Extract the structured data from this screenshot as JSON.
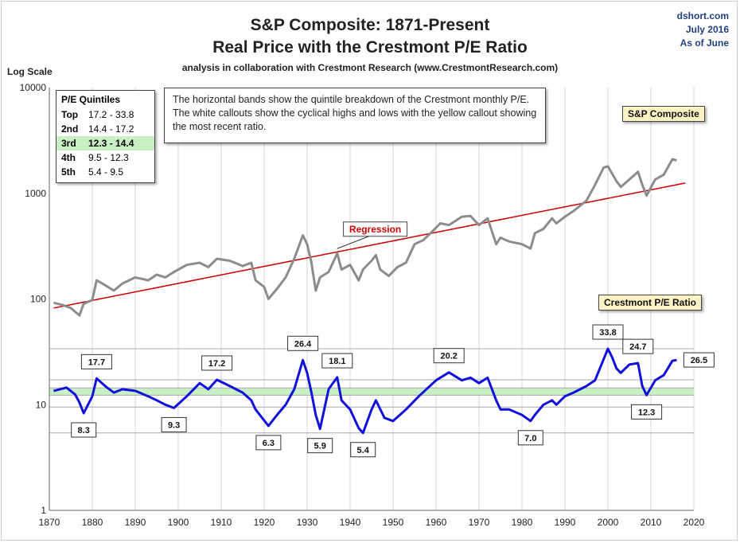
{
  "title_line1": "S&P Composite: 1871-Present",
  "title_line2": "Real Price with the Crestmont P/E Ratio",
  "subtitle": "analysis in collaboration with Crestmont Research (www.CrestmontResearch.com)",
  "source": {
    "line1": "dshort.com",
    "line2": "July 2016",
    "line3": "As of June"
  },
  "axis_label_y": "Log Scale",
  "quintiles": {
    "heading": "P/E Quintiles",
    "rows": [
      {
        "label": "Top",
        "range": "17.2 - 33.8"
      },
      {
        "label": "2nd",
        "range": "14.4 - 17.2"
      },
      {
        "label": "3rd",
        "range": "12.3 - 14.4"
      },
      {
        "label": "4th",
        "range": "9.5 - 12.3"
      },
      {
        "label": "5th",
        "range": "5.4 - 9.5"
      }
    ]
  },
  "note": "The horizontal bands show the quintile breakdown of the Crestmont monthly P/E.  The white callouts show the cyclical highs and lows with the yellow callout showing the most recent ratio.",
  "series_labels": {
    "sp": "S&P Composite",
    "pe": "Crestmont P/E Ratio",
    "regression": "Regression"
  },
  "colors": {
    "sp": "#8c8c8c",
    "pe": "#1111dd",
    "regression": "#cc0000",
    "band": "#c8f0c4",
    "callout_recent": "#fdf3c4"
  },
  "chart_data": {
    "type": "line",
    "yscale": "log",
    "ylim": [
      1,
      10000
    ],
    "xlim": [
      1870,
      2020
    ],
    "y_ticks": [
      "1",
      "10",
      "100",
      "1000",
      "10000"
    ],
    "x_ticks": [
      "1870",
      "1880",
      "1890",
      "1900",
      "1910",
      "1920",
      "1930",
      "1940",
      "1950",
      "1960",
      "1970",
      "1980",
      "1990",
      "2000",
      "2010",
      "2020"
    ],
    "grid": true,
    "hlines": [
      5.4,
      9.5,
      12.3,
      14.4,
      17.2,
      33.8
    ],
    "band": [
      12.3,
      14.4
    ],
    "series": [
      {
        "name": "S&P Composite",
        "x": [
          1871,
          1873,
          1875,
          1877,
          1878,
          1880,
          1881,
          1883,
          1885,
          1887,
          1890,
          1893,
          1895,
          1897,
          1899,
          1902,
          1905,
          1907,
          1909,
          1912,
          1915,
          1917,
          1918,
          1920,
          1921,
          1923,
          1925,
          1927,
          1929,
          1930,
          1931,
          1932,
          1933,
          1935,
          1937,
          1938,
          1940,
          1942,
          1943,
          1945,
          1946,
          1947,
          1949,
          1951,
          1953,
          1955,
          1957,
          1959,
          1961,
          1963,
          1966,
          1968,
          1970,
          1972,
          1974,
          1975,
          1977,
          1980,
          1982,
          1983,
          1985,
          1987,
          1988,
          1990,
          1992,
          1995,
          1997,
          1999,
          2000,
          2002,
          2003,
          2005,
          2007,
          2008,
          2009,
          2011,
          2013,
          2015,
          2016
        ],
        "y": [
          92,
          88,
          82,
          70,
          90,
          98,
          150,
          135,
          120,
          140,
          160,
          150,
          170,
          160,
          180,
          210,
          220,
          200,
          240,
          230,
          205,
          220,
          150,
          130,
          100,
          125,
          160,
          240,
          400,
          330,
          220,
          120,
          160,
          180,
          270,
          190,
          210,
          150,
          190,
          230,
          260,
          190,
          165,
          200,
          220,
          330,
          360,
          430,
          520,
          500,
          600,
          610,
          500,
          580,
          330,
          380,
          350,
          330,
          300,
          420,
          460,
          580,
          520,
          600,
          680,
          850,
          1200,
          1750,
          1800,
          1300,
          1150,
          1350,
          1600,
          1200,
          950,
          1350,
          1500,
          2100,
          2050
        ]
      },
      {
        "name": "Crestmont P/E Ratio",
        "x": [
          1871,
          1874,
          1876,
          1877,
          1878,
          1880,
          1881,
          1883,
          1885,
          1887,
          1890,
          1893,
          1895,
          1897,
          1899,
          1902,
          1905,
          1907,
          1909,
          1912,
          1915,
          1917,
          1918,
          1921,
          1923,
          1925,
          1927,
          1929,
          1930,
          1931,
          1932,
          1933,
          1935,
          1936,
          1937,
          1938,
          1940,
          1942,
          1943,
          1945,
          1946,
          1948,
          1950,
          1953,
          1956,
          1960,
          1963,
          1966,
          1968,
          1970,
          1972,
          1974,
          1975,
          1977,
          1980,
          1982,
          1983,
          1985,
          1987,
          1988,
          1990,
          1992,
          1995,
          1997,
          2000,
          2001,
          2002,
          2003,
          2005,
          2007,
          2008,
          2009,
          2011,
          2013,
          2015,
          2016
        ],
        "y": [
          13.5,
          14.5,
          12.5,
          10.5,
          8.3,
          12,
          17.7,
          15,
          13,
          14,
          13.5,
          12,
          11,
          10,
          9.3,
          12,
          16,
          14,
          17.2,
          15,
          13,
          11,
          9,
          6.3,
          8,
          10,
          14,
          26.4,
          20,
          13,
          8,
          5.9,
          14,
          16,
          18.1,
          11,
          9,
          6,
          5.4,
          9,
          11,
          7.5,
          7,
          9,
          12,
          17,
          20.2,
          17,
          18,
          16,
          18,
          11,
          9,
          9,
          8,
          7.0,
          8,
          10,
          11,
          10,
          12,
          13,
          15,
          17,
          33.8,
          28,
          22,
          20,
          24,
          24.7,
          15,
          12.3,
          17,
          19,
          26,
          26.5
        ]
      }
    ],
    "regression": {
      "x": [
        1871,
        2018
      ],
      "y": [
        82,
        1250
      ]
    },
    "callouts": [
      {
        "text": "8.3",
        "x": 1878,
        "y": 8.3,
        "pos": "below"
      },
      {
        "text": "17.7",
        "x": 1881,
        "y": 17.7,
        "pos": "above"
      },
      {
        "text": "9.3",
        "x": 1899,
        "y": 9.3,
        "pos": "below"
      },
      {
        "text": "17.2",
        "x": 1909,
        "y": 17.2,
        "pos": "above"
      },
      {
        "text": "6.3",
        "x": 1921,
        "y": 6.3,
        "pos": "below"
      },
      {
        "text": "26.4",
        "x": 1929,
        "y": 26.4,
        "pos": "above"
      },
      {
        "text": "5.9",
        "x": 1933,
        "y": 5.9,
        "pos": "below"
      },
      {
        "text": "18.1",
        "x": 1937,
        "y": 18.1,
        "pos": "above"
      },
      {
        "text": "5.4",
        "x": 1943,
        "y": 5.4,
        "pos": "below"
      },
      {
        "text": "20.2",
        "x": 1963,
        "y": 20.2,
        "pos": "above"
      },
      {
        "text": "7.0",
        "x": 1982,
        "y": 7.0,
        "pos": "below"
      },
      {
        "text": "33.8",
        "x": 2000,
        "y": 33.8,
        "pos": "above"
      },
      {
        "text": "24.7",
        "x": 2007,
        "y": 24.7,
        "pos": "above"
      },
      {
        "text": "12.3",
        "x": 2009,
        "y": 12.3,
        "pos": "below"
      },
      {
        "text": "26.5",
        "x": 2016,
        "y": 26.5,
        "pos": "right",
        "recent": true
      }
    ]
  }
}
